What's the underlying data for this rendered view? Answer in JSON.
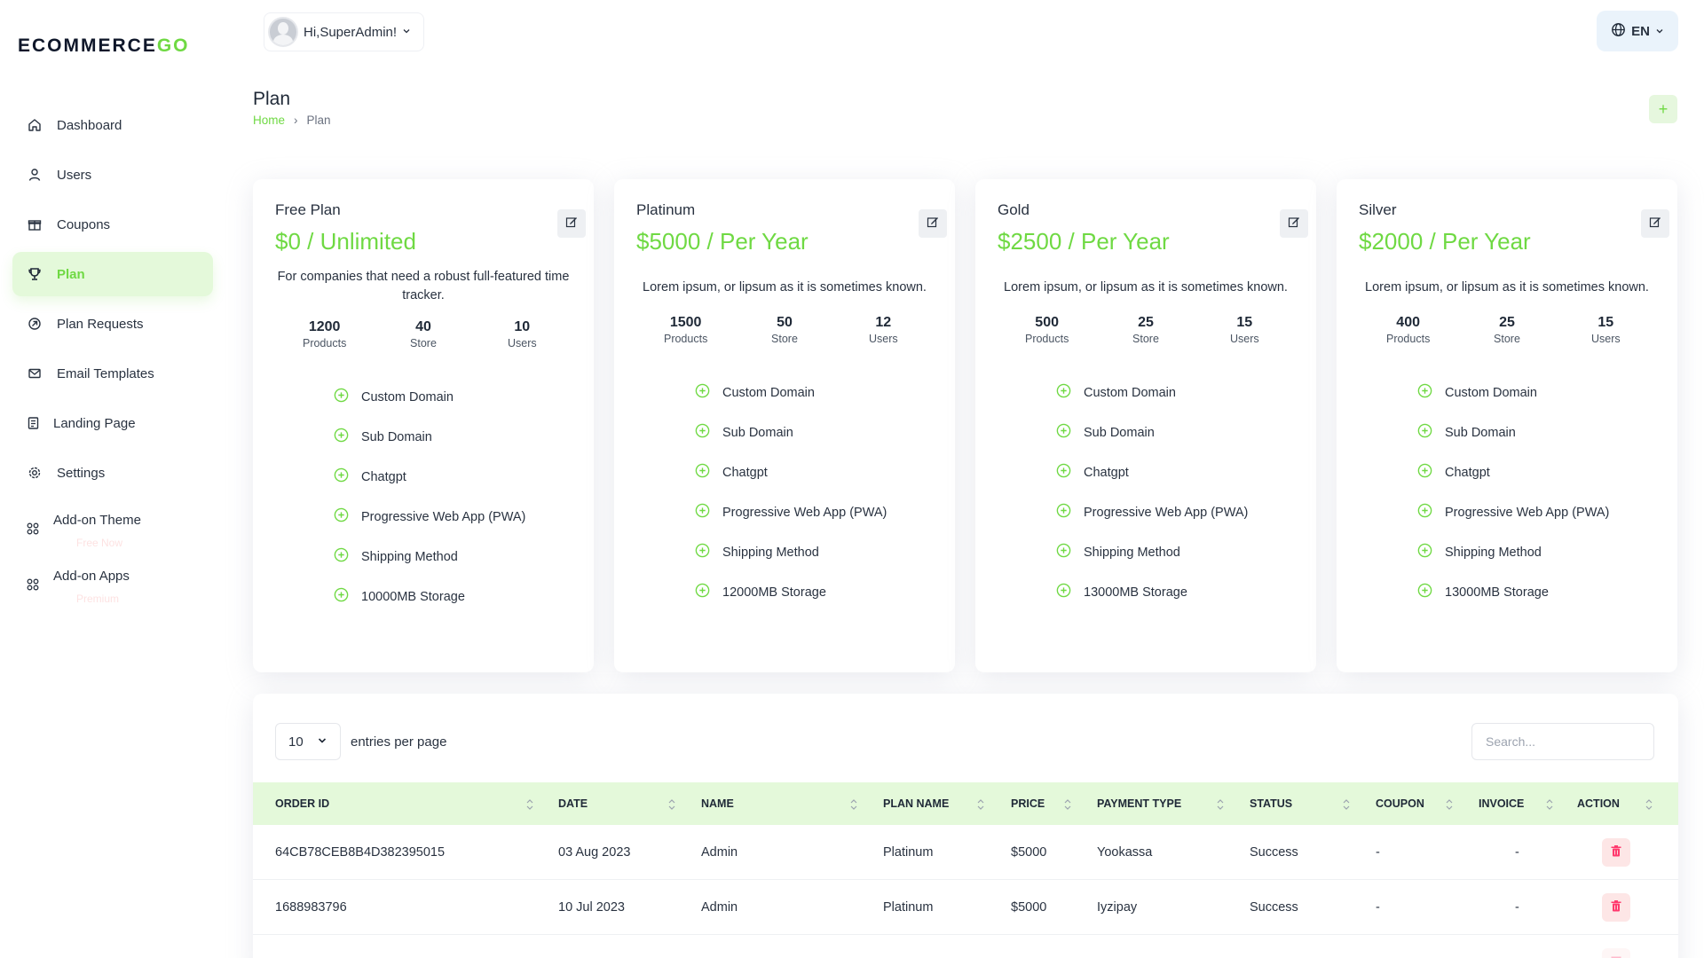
{
  "brand": {
    "logo_main": "ECOMMERCE",
    "logo_accent": "GO"
  },
  "sidebar": {
    "items": [
      {
        "label": "Dashboard",
        "icon": "home-icon"
      },
      {
        "label": "Users",
        "icon": "user-icon"
      },
      {
        "label": "Coupons",
        "icon": "gift-icon"
      },
      {
        "label": "Plan",
        "icon": "trophy-icon",
        "active": true
      },
      {
        "label": "Plan Requests",
        "icon": "arrow-circle-icon"
      },
      {
        "label": "Email Templates",
        "icon": "mail-icon"
      },
      {
        "label": "Landing Page",
        "icon": "file-icon"
      },
      {
        "label": "Settings",
        "icon": "gear-icon"
      },
      {
        "label": "Add-on Theme",
        "icon": "apps-icon",
        "sub": "Free Now"
      },
      {
        "label": "Add-on Apps",
        "icon": "apps-icon",
        "sub": "Premium"
      }
    ]
  },
  "header": {
    "user_label": "Hi,SuperAdmin!",
    "language": "EN"
  },
  "page": {
    "title": "Plan",
    "breadcrumb": {
      "home": "Home",
      "separator": "›",
      "current": "Plan"
    },
    "add_label": "+"
  },
  "plans": [
    {
      "name": "Free Plan",
      "price": "$0 / Unlimited",
      "description": "For companies that need a robust full-featured time tracker.",
      "stats": [
        {
          "value": "1200",
          "label": "Products"
        },
        {
          "value": "40",
          "label": "Store"
        },
        {
          "value": "10",
          "label": "Users"
        }
      ],
      "features": [
        "Custom Domain",
        "Sub Domain",
        "Chatgpt",
        "Progressive Web App (PWA)",
        "Shipping Method",
        "10000MB Storage"
      ]
    },
    {
      "name": "Platinum",
      "price": "$5000 / Per Year",
      "description": "Lorem ipsum, or lipsum as it is sometimes known.",
      "stats": [
        {
          "value": "1500",
          "label": "Products"
        },
        {
          "value": "50",
          "label": "Store"
        },
        {
          "value": "12",
          "label": "Users"
        }
      ],
      "features": [
        "Custom Domain",
        "Sub Domain",
        "Chatgpt",
        "Progressive Web App (PWA)",
        "Shipping Method",
        "12000MB Storage"
      ]
    },
    {
      "name": "Gold",
      "price": "$2500 / Per Year",
      "description": "Lorem ipsum, or lipsum as it is sometimes known.",
      "stats": [
        {
          "value": "500",
          "label": "Products"
        },
        {
          "value": "25",
          "label": "Store"
        },
        {
          "value": "15",
          "label": "Users"
        }
      ],
      "features": [
        "Custom Domain",
        "Sub Domain",
        "Chatgpt",
        "Progressive Web App (PWA)",
        "Shipping Method",
        "13000MB Storage"
      ]
    },
    {
      "name": "Silver",
      "price": "$2000 / Per Year",
      "description": "Lorem ipsum, or lipsum as it is sometimes known.",
      "stats": [
        {
          "value": "400",
          "label": "Products"
        },
        {
          "value": "25",
          "label": "Store"
        },
        {
          "value": "15",
          "label": "Users"
        }
      ],
      "features": [
        "Custom Domain",
        "Sub Domain",
        "Chatgpt",
        "Progressive Web App (PWA)",
        "Shipping Method",
        "13000MB Storage"
      ]
    }
  ],
  "table": {
    "entries_value": "10",
    "entries_label": "entries per page",
    "search_placeholder": "Search...",
    "columns": [
      "ORDER ID",
      "DATE",
      "NAME",
      "PLAN NAME",
      "PRICE",
      "PAYMENT TYPE",
      "STATUS",
      "COUPON",
      "INVOICE",
      "ACTION"
    ],
    "rows": [
      [
        "64CB78CEB8B4D382395015",
        "03 Aug 2023",
        "Admin",
        "Platinum",
        "$5000",
        "Yookassa",
        "Success",
        "-",
        "-"
      ],
      [
        "1688983796",
        "10 Jul 2023",
        "Admin",
        "Platinum",
        "$5000",
        "Iyzipay",
        "Success",
        "-",
        "-"
      ]
    ]
  },
  "colors": {
    "accent": "#6fd943",
    "accent_light": "#e4f9da",
    "danger": "#ff3a6e",
    "danger_light": "#fde6e6"
  }
}
